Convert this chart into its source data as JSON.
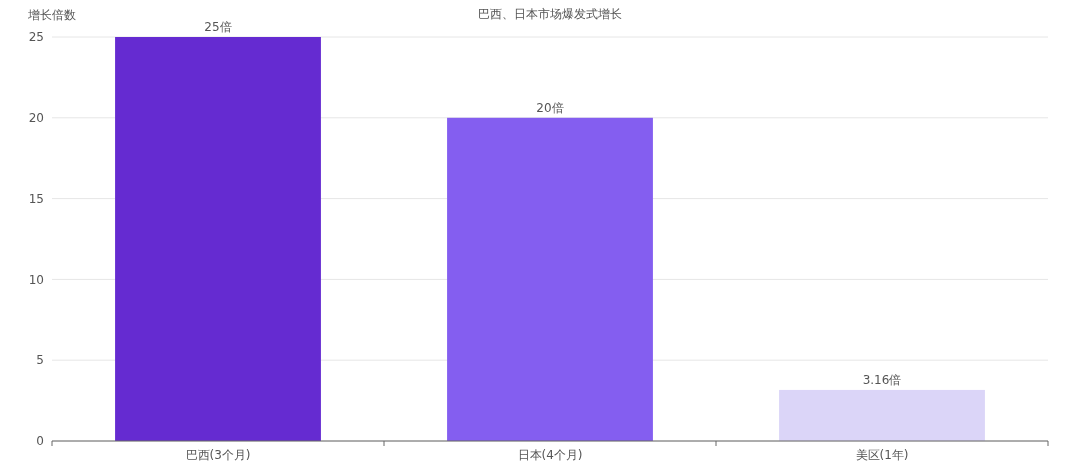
{
  "chart_data": {
    "type": "bar",
    "title": "巴西、日本市场爆发式增长",
    "ylabel": "增长倍数",
    "categories": [
      "巴西(3个月)",
      "日本(4个月)",
      "美区(1年)"
    ],
    "values": [
      25,
      20,
      3.16
    ],
    "colors": [
      "#652bd1",
      "#845ef0",
      "#dbd5f8"
    ],
    "value_labels": [
      "25倍",
      "20倍",
      "3.16倍"
    ],
    "ylim": [
      0,
      25
    ],
    "yticks": [
      0,
      5,
      10,
      15,
      20,
      25
    ],
    "grid": "y"
  }
}
